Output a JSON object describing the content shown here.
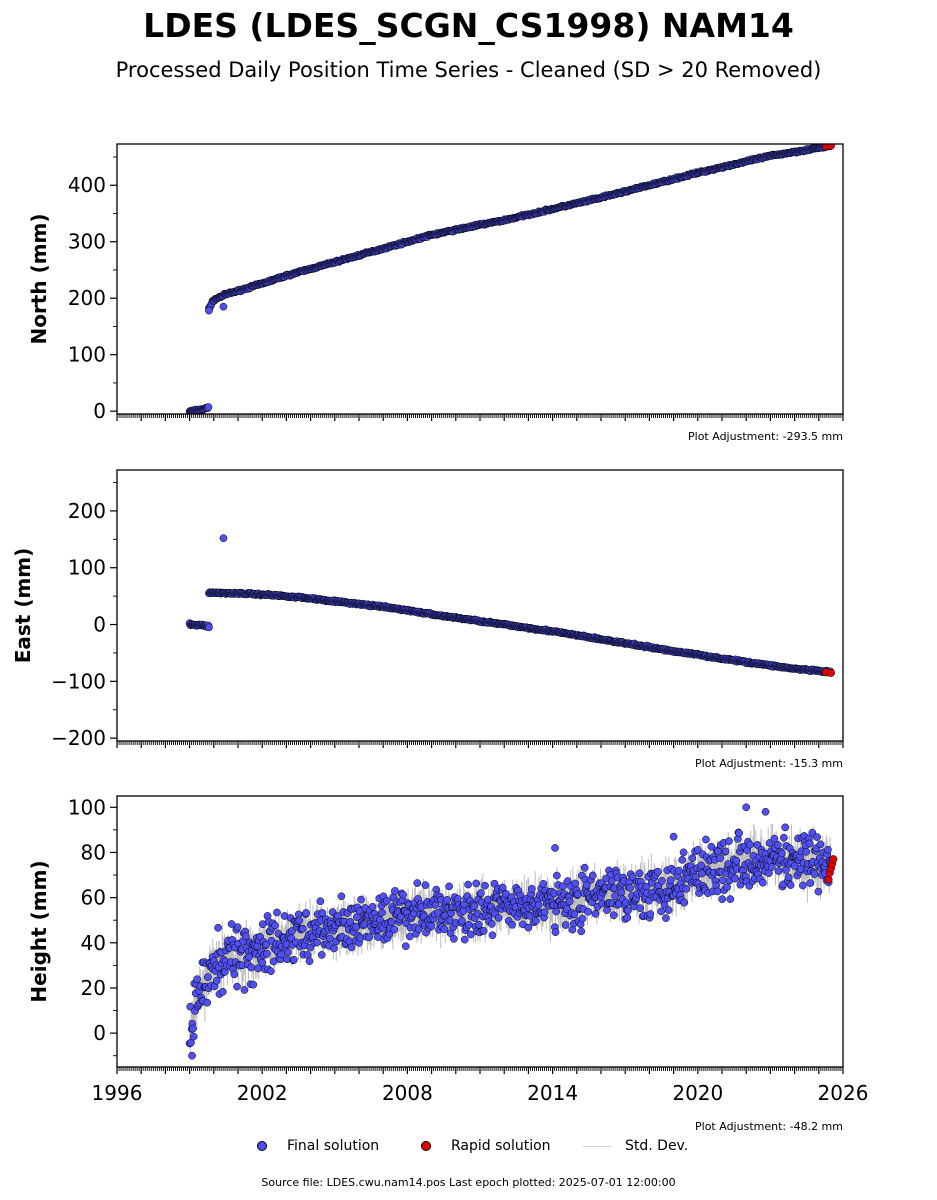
{
  "title": "LDES (LDES_SCGN_CS1998) NAM14",
  "subtitle": "Processed Daily Position Time Series - Cleaned (SD > 20 Removed)",
  "legend": {
    "final": "Final solution",
    "rapid": "Rapid solution",
    "std": "Std. Dev."
  },
  "source": "Source file: LDES.cwu.nam14.pos  Last epoch plotted: 2025-07-01 12:00:00",
  "colors": {
    "final": "#4f4ff2",
    "rapid": "#e00000",
    "std": "#bdbdbd",
    "edge": "#000000"
  },
  "chart_data": [
    {
      "type": "scatter",
      "ylabel": "North (mm)",
      "xlim": [
        1996,
        2026
      ],
      "ylim": [
        -5,
        473
      ],
      "yticks": [
        0,
        100,
        200,
        300,
        400
      ],
      "adjustment": "Plot Adjustment: -293.5 mm",
      "series": [
        {
          "name": "Final solution",
          "segments": [
            {
              "x": [
                1999.0,
                1999.4,
                1999.6,
                1999.75,
                1999.8
              ],
              "y": [
                0,
                2,
                4,
                6,
                8
              ]
            },
            {
              "x": [
                1999.8,
                2000.0,
                2000.5,
                2001,
                2002,
                2003,
                2004,
                2005,
                2006,
                2007,
                2008,
                2009,
                2010,
                2011,
                2012,
                2013,
                2014,
                2015,
                2016,
                2017,
                2018,
                2019,
                2020,
                2021,
                2022,
                2023,
                2024,
                2025.5
              ],
              "y": [
                182,
                197,
                207,
                213,
                226,
                240,
                252,
                264,
                276,
                288,
                300,
                312,
                321,
                330,
                338,
                348,
                358,
                368,
                378,
                389,
                400,
                411,
                422,
                432,
                442,
                452,
                459,
                470
              ]
            }
          ],
          "outliers": [
            [
              1999.8,
              178
            ],
            [
              2000.4,
              185
            ]
          ]
        },
        {
          "name": "Rapid solution",
          "x": [
            2025.3,
            2025.5
          ],
          "y": [
            469,
            470
          ]
        }
      ]
    },
    {
      "type": "scatter",
      "ylabel": "East (mm)",
      "xlim": [
        1996,
        2026
      ],
      "ylim": [
        -205,
        272
      ],
      "yticks": [
        -200,
        -100,
        0,
        100,
        200
      ],
      "adjustment": "Plot Adjustment: -15.3 mm",
      "series": [
        {
          "name": "Final solution",
          "segments": [
            {
              "x": [
                1999.0,
                1999.4,
                1999.7,
                1999.8
              ],
              "y": [
                0,
                -1,
                -2,
                -3
              ]
            },
            {
              "x": [
                1999.8,
                2001,
                2002,
                2003,
                2004,
                2005,
                2006,
                2007,
                2008,
                2009,
                2010,
                2011,
                2012,
                2013,
                2014,
                2015,
                2016,
                2017,
                2018,
                2019,
                2020,
                2021,
                2022,
                2023,
                2024,
                2025.5
              ],
              "y": [
                56,
                55,
                53,
                50,
                46,
                41,
                36,
                31,
                25,
                18,
                12,
                6,
                0,
                -6,
                -12,
                -19,
                -26,
                -33,
                -40,
                -47,
                -53,
                -60,
                -66,
                -72,
                -78,
                -84
              ]
            }
          ],
          "outliers": [
            [
              2000.4,
              152
            ],
            [
              1999.8,
              -5
            ]
          ]
        },
        {
          "name": "Rapid solution",
          "x": [
            2025.3,
            2025.5
          ],
          "y": [
            -84,
            -85
          ]
        }
      ]
    },
    {
      "type": "scatter",
      "ylabel": "Height (mm)",
      "xlabel": "",
      "xlim": [
        1996,
        2026
      ],
      "xticks": [
        1996,
        2002,
        2008,
        2014,
        2020,
        2026
      ],
      "ylim": [
        -15,
        105
      ],
      "yticks": [
        0,
        20,
        40,
        60,
        80,
        100
      ],
      "adjustment": "Plot Adjustment: -48.2 mm",
      "series": [
        {
          "name": "Final solution",
          "segments": [
            {
              "x": [
                1999.0,
                1999.3,
                1999.6,
                2000,
                2000.5,
                2001,
                2002,
                2003,
                2004,
                2005,
                2006,
                2007,
                2008,
                2009,
                2010,
                2011,
                2012,
                2013,
                2014,
                2015,
                2016,
                2017,
                2018,
                2019,
                2020,
                2021,
                2022,
                2023,
                2024,
                2025.5
              ],
              "y": [
                0,
                14,
                22,
                30,
                35,
                33,
                38,
                42,
                45,
                46,
                48,
                50,
                52,
                54,
                54,
                55,
                56,
                57,
                58,
                59,
                61,
                63,
                63,
                66,
                72,
                74,
                77,
                78,
                76,
                74
              ],
              "spread": [
                7,
                8,
                9,
                10,
                10,
                9,
                9,
                8,
                8,
                8,
                8,
                8,
                8,
                8,
                8,
                8,
                8,
                8,
                8,
                8,
                8,
                8,
                8,
                9,
                9,
                9,
                9,
                9,
                8,
                8
              ]
            }
          ],
          "outliers": [
            [
              2022.0,
              100
            ],
            [
              2022.8,
              98
            ],
            [
              2014.1,
              82
            ],
            [
              2019.0,
              87
            ],
            [
              1999.1,
              -10
            ]
          ]
        },
        {
          "name": "Rapid solution",
          "x": [
            2025.4,
            2025.45,
            2025.5,
            2025.55,
            2025.6
          ],
          "y": [
            68,
            71,
            73,
            75,
            77
          ]
        }
      ]
    }
  ]
}
